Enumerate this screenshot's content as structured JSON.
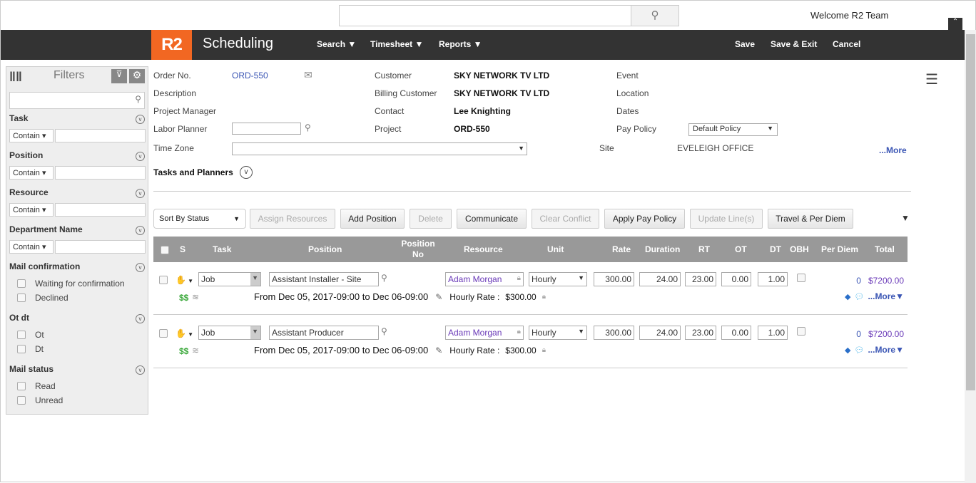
{
  "header": {
    "welcome": "Welcome R2 Team",
    "logo": "R2",
    "app_title": "Scheduling",
    "menus": [
      "Search",
      "Timesheet",
      "Reports"
    ],
    "actions": [
      "Save",
      "Save & Exit",
      "Cancel"
    ]
  },
  "colors": {
    "brand": "#f26722",
    "nav": "#333333",
    "link": "#3a55b4"
  },
  "filters": {
    "title": "Filters",
    "sections": [
      {
        "label": "Task",
        "mode": "Contain"
      },
      {
        "label": "Position",
        "mode": "Contain"
      },
      {
        "label": "Resource",
        "mode": "Contain"
      },
      {
        "label": "Department Name",
        "mode": "Contain"
      }
    ],
    "mail_confirmation": {
      "label": "Mail confirmation",
      "options": [
        "Waiting for confirmation",
        "Declined"
      ]
    },
    "ot_dt": {
      "label": "Ot dt",
      "options": [
        "Ot",
        "Dt"
      ]
    },
    "mail_status": {
      "label": "Mail status",
      "options": [
        "Read",
        "Unread"
      ]
    }
  },
  "order": {
    "order_no_label": "Order No.",
    "order_no": "ORD-550",
    "description_label": "Description",
    "pm_label": "Project Manager",
    "labor_planner_label": "Labor Planner",
    "time_zone_label": "Time Zone",
    "customer_label": "Customer",
    "customer": "SKY NETWORK TV LTD",
    "billing_label": "Billing Customer",
    "billing": "SKY NETWORK TV LTD",
    "contact_label": "Contact",
    "contact": "Lee Knighting",
    "project_label": "Project",
    "project": "ORD-550",
    "event_label": "Event",
    "location_label": "Location",
    "dates_label": "Dates",
    "pay_policy_label": "Pay Policy",
    "pay_policy": "Default Policy",
    "site_label": "Site",
    "site": "EVELEIGH OFFICE",
    "more": "...More",
    "tasks_planners": "Tasks and Planners"
  },
  "toolbar": {
    "sort": "Sort By Status",
    "buttons": [
      {
        "label": "Assign Resources",
        "disabled": true
      },
      {
        "label": "Add Position",
        "disabled": false
      },
      {
        "label": "Delete",
        "disabled": true
      },
      {
        "label": "Communicate",
        "disabled": false
      },
      {
        "label": "Clear Conflict",
        "disabled": true
      },
      {
        "label": "Apply Pay Policy",
        "disabled": false
      },
      {
        "label": "Update Line(s)",
        "disabled": true
      },
      {
        "label": "Travel & Per Diem",
        "disabled": false
      }
    ]
  },
  "table": {
    "headers": [
      "S",
      "Task",
      "Position",
      "Position No",
      "Resource",
      "Unit",
      "Rate",
      "Duration",
      "RT",
      "OT",
      "DT",
      "OBH",
      "Per Diem",
      "Total"
    ],
    "rows": [
      {
        "task": "Job",
        "position": "Assistant Installer - Site",
        "resource": "Adam Morgan",
        "unit": "Hourly",
        "rate": "300.00",
        "duration": "24.00",
        "rt": "23.00",
        "ot": "0.00",
        "dt": "1.00",
        "per_diem": "0",
        "total": "$7200.00",
        "dates": "From Dec 05, 2017-09:00 to Dec 06-09:00",
        "hourly_rate_label": "Hourly Rate :",
        "hourly_rate": "$300.00",
        "more": "...More"
      },
      {
        "task": "Job",
        "position": "Assistant Producer",
        "resource": "Adam Morgan",
        "unit": "Hourly",
        "rate": "300.00",
        "duration": "24.00",
        "rt": "23.00",
        "ot": "0.00",
        "dt": "1.00",
        "per_diem": "0",
        "total": "$7200.00",
        "dates": "From Dec 05, 2017-09:00 to Dec 06-09:00",
        "hourly_rate_label": "Hourly Rate :",
        "hourly_rate": "$300.00",
        "more": "...More"
      }
    ]
  }
}
